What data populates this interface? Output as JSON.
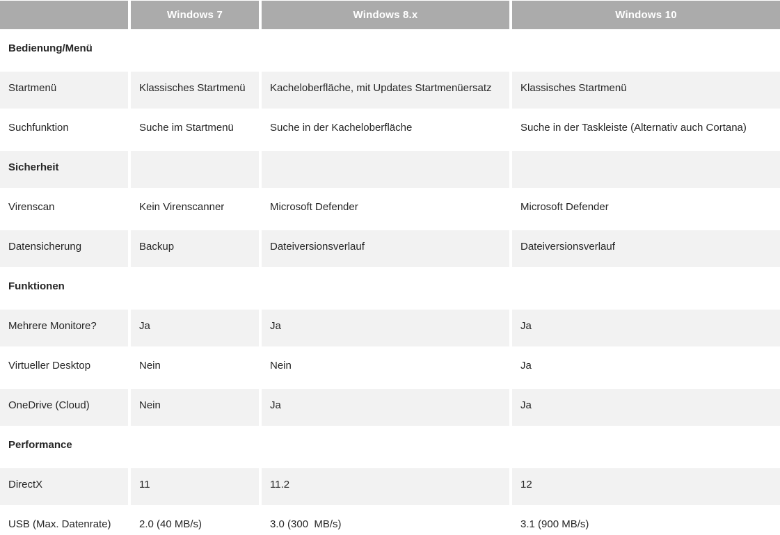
{
  "style": {
    "header_bg": "#ababab",
    "header_text": "#ffffff",
    "shaded_row_bg": "#f2f2f2",
    "body_text": "#262626"
  },
  "chart_data": {
    "type": "table",
    "title": "",
    "columns": [
      "",
      "Windows 7",
      "Windows 8.x",
      "Windows 10"
    ],
    "rows": [
      {
        "type": "section",
        "label": "Bedienung/Menü"
      },
      {
        "type": "data",
        "label": "Startmenü",
        "values": [
          "Klassisches Startmenü",
          "Kacheloberfläche, mit Updates Startmenüersatz",
          "Klassisches Startmenü"
        ]
      },
      {
        "type": "data",
        "label": "Suchfunktion",
        "values": [
          "Suche im Startmenü",
          "Suche in der Kacheloberfläche",
          "Suche in der Taskleiste (Alternativ auch Cortana)"
        ]
      },
      {
        "type": "section",
        "label": "Sicherheit"
      },
      {
        "type": "data",
        "label": "Virenscan",
        "values": [
          "Kein Virenscanner",
          "Microsoft Defender",
          "Microsoft Defender"
        ]
      },
      {
        "type": "data",
        "label": "Datensicherung",
        "values": [
          "Backup",
          "Dateiversionsverlauf",
          "Dateiversionsverlauf"
        ]
      },
      {
        "type": "section",
        "label": "Funktionen"
      },
      {
        "type": "data",
        "label": "Mehrere Monitore?",
        "values": [
          "Ja",
          "Ja",
          "Ja"
        ]
      },
      {
        "type": "data",
        "label": "Virtueller Desktop",
        "values": [
          "Nein",
          "Nein",
          "Ja"
        ]
      },
      {
        "type": "data",
        "label": "OneDrive (Cloud)",
        "values": [
          "Nein",
          "Ja",
          "Ja"
        ]
      },
      {
        "type": "section",
        "label": "Performance"
      },
      {
        "type": "data",
        "label": "DirectX",
        "values": [
          "11",
          "11.2",
          "12"
        ]
      },
      {
        "type": "data",
        "label": "USB (Max. Datenrate)",
        "values": [
          "2.0 (40 MB/s)",
          "3.0 (300  MB/s)",
          "3.1 (900 MB/s)"
        ]
      }
    ]
  }
}
